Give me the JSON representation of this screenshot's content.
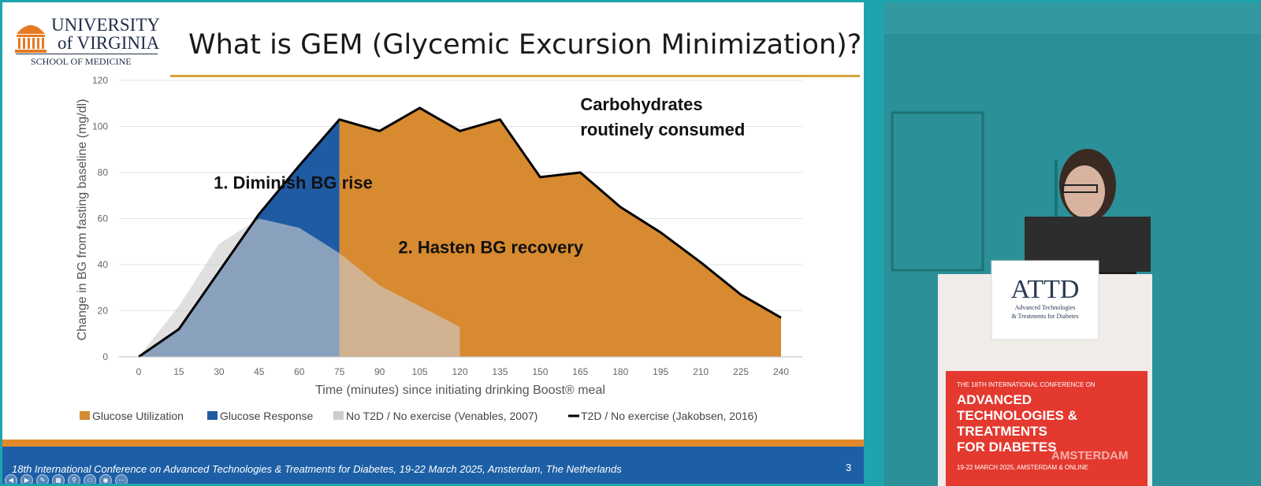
{
  "slide": {
    "title": "What is GEM (Glycemic Excursion Minimization)?",
    "logo": {
      "line1": "University",
      "line2": "of Virginia",
      "line3": "School of Medicine"
    },
    "footer": "18th International Conference on Advanced Technologies & Treatments for Diabetes, 19-22 March 2025, Amsterdam, The Netherlands",
    "page_number": "3"
  },
  "chart_data": {
    "type": "area",
    "xlabel": "Time (minutes) since initiating drinking Boost® meal",
    "ylabel": "Change in BG from fasting baseline  (mg/dl)",
    "xlim": [
      0,
      240
    ],
    "ylim": [
      0,
      120
    ],
    "x_ticks": [
      0,
      15,
      30,
      45,
      60,
      75,
      90,
      105,
      120,
      135,
      150,
      165,
      180,
      195,
      210,
      225,
      240
    ],
    "y_ticks": [
      0,
      20,
      40,
      60,
      80,
      100,
      120
    ],
    "grid": true,
    "legend_position": "bottom",
    "series": [
      {
        "name": "Glucose Utilization",
        "kind": "area",
        "color": "#d88a30",
        "x": [
          75,
          90,
          105,
          120,
          135,
          150,
          165,
          180,
          195,
          210,
          225,
          240
        ],
        "y": [
          103,
          98,
          108,
          98,
          103,
          78,
          80,
          65,
          54,
          41,
          27,
          17
        ]
      },
      {
        "name": "Glucose Response",
        "kind": "area",
        "color": "#1f5ba3",
        "x": [
          0,
          15,
          30,
          45,
          60,
          75
        ],
        "y": [
          0,
          12,
          37,
          62,
          83,
          103
        ]
      },
      {
        "name": "No T2D / No exercise (Venables, 2007)",
        "kind": "area",
        "color": "#cdcdcd",
        "x": [
          0,
          15,
          30,
          45,
          60,
          75,
          90,
          105,
          120
        ],
        "y": [
          0,
          22,
          49,
          60,
          56,
          45,
          31,
          22,
          13
        ]
      },
      {
        "name": "T2D / No exercise (Jakobsen, 2016)",
        "kind": "line",
        "color": "#000000",
        "x": [
          0,
          15,
          30,
          45,
          60,
          75,
          90,
          105,
          120,
          135,
          150,
          165,
          180,
          195,
          210,
          225,
          240
        ],
        "y": [
          0,
          12,
          37,
          62,
          83,
          103,
          98,
          108,
          98,
          103,
          78,
          80,
          65,
          54,
          41,
          27,
          17
        ]
      }
    ],
    "annotations": [
      {
        "text": "Carbohydrates",
        "x": 165,
        "y": 107
      },
      {
        "text": "routinely consumed",
        "x": 165,
        "y": 96
      },
      {
        "text": "1. Diminish BG rise",
        "x": 28,
        "y": 73
      },
      {
        "text": "2. Hasten BG recovery",
        "x": 97,
        "y": 45
      }
    ]
  }
}
